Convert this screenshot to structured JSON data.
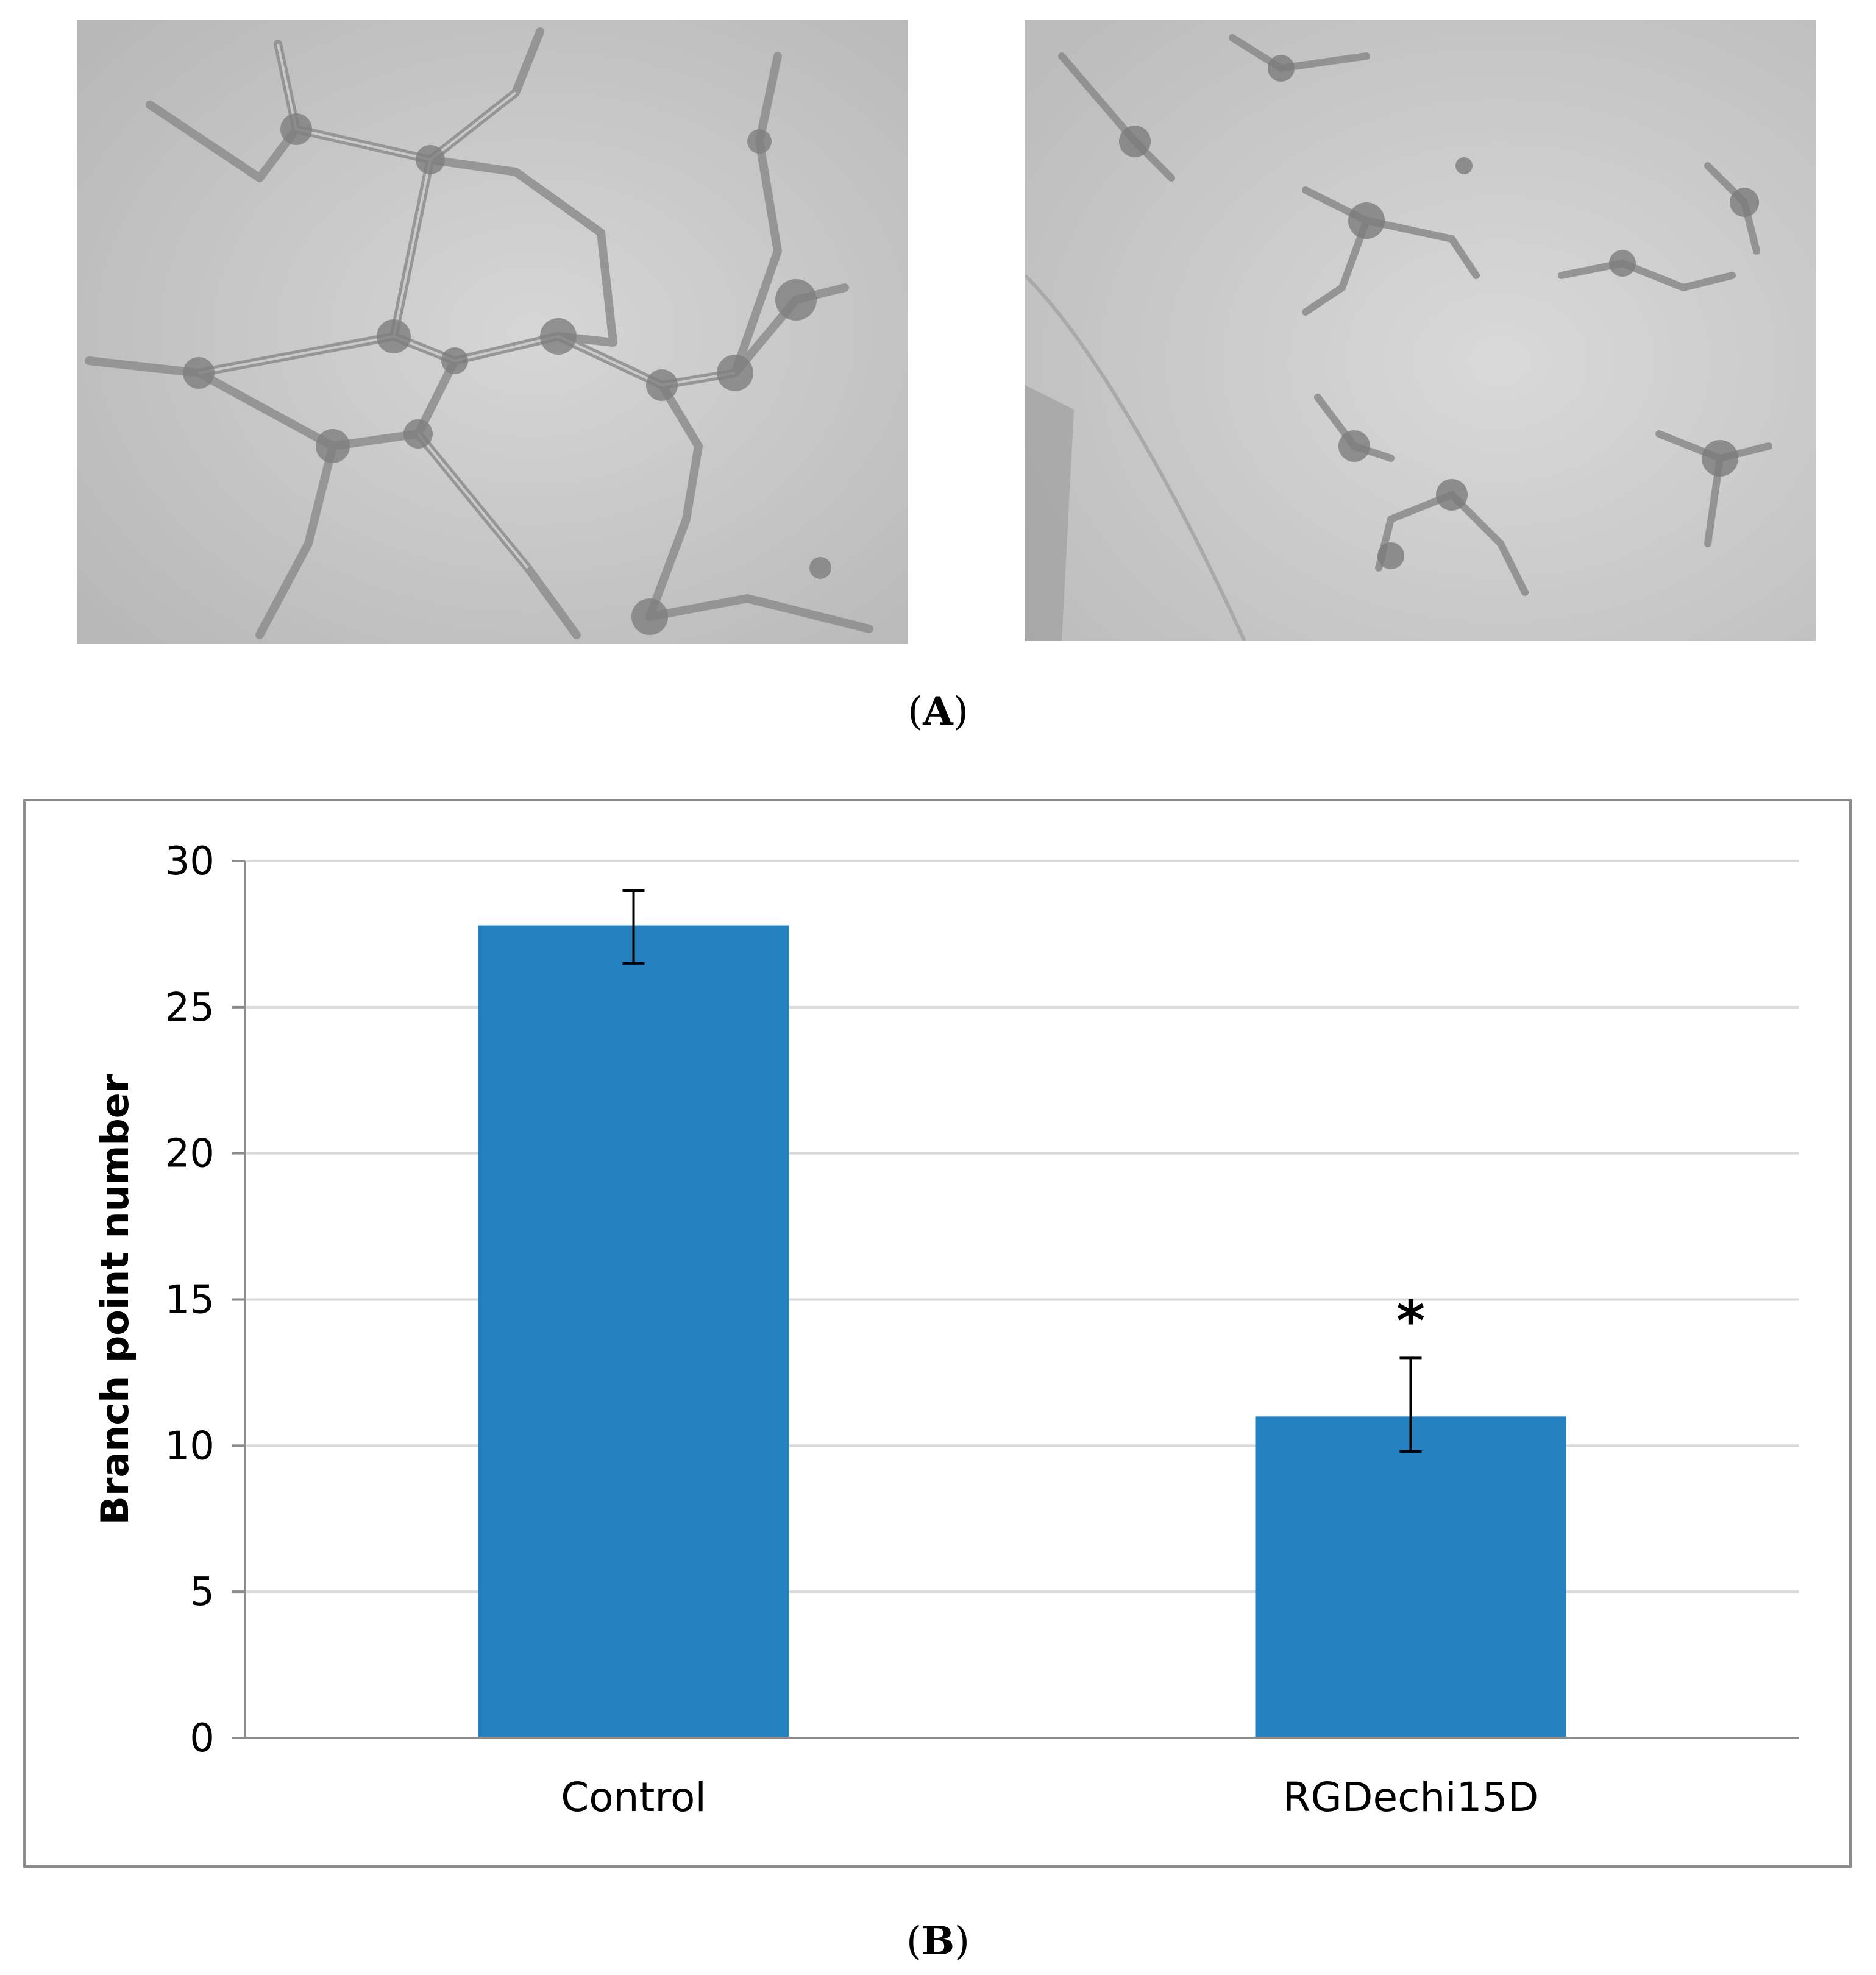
{
  "panels": {
    "a_label": "A",
    "b_label": "B"
  },
  "micrographs": [
    {
      "name": "control-micrograph",
      "subject": "tube-network"
    },
    {
      "name": "treated-micrograph",
      "subject": "scattered-cells"
    }
  ],
  "chart_data": {
    "type": "bar",
    "categories": [
      "Control",
      "RGDechi15D"
    ],
    "values": [
      27.8,
      11.0
    ],
    "error_upper": [
      29.0,
      13.0
    ],
    "error_lower": [
      26.5,
      9.8
    ],
    "annotations": [
      "",
      "*"
    ],
    "title": "",
    "xlabel": "",
    "ylabel": "Branch point number",
    "ylim": [
      0,
      30
    ],
    "yticks": [
      0,
      5,
      10,
      15,
      20,
      25,
      30
    ],
    "grid": true,
    "bar_color": "#2681c1"
  }
}
